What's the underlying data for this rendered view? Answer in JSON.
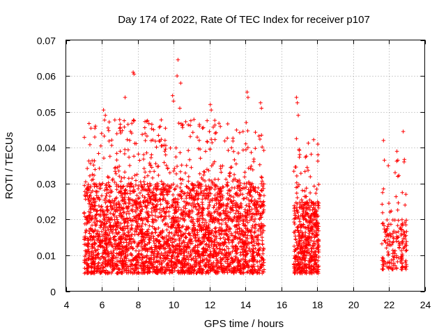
{
  "chart_data": {
    "type": "scatter",
    "title": "Day 174 of 2022, Rate Of TEC Index for receiver p107",
    "xlabel": "GPS time / hours",
    "ylabel": "ROTI / TECUs",
    "xlim": [
      4,
      24
    ],
    "ylim": [
      0,
      0.07
    ],
    "x_ticks": [
      4,
      6,
      8,
      10,
      12,
      14,
      16,
      18,
      20,
      22,
      24
    ],
    "x_tick_labels": [
      "4",
      "6",
      "8",
      "10",
      "12",
      "14",
      "16",
      "18",
      "20",
      "22",
      "24"
    ],
    "y_ticks": [
      0,
      0.01,
      0.02,
      0.03,
      0.04,
      0.05,
      0.06,
      0.07
    ],
    "y_tick_labels": [
      "0",
      "0.01",
      "0.02",
      "0.03",
      "0.04",
      "0.05",
      "0.06",
      "0.07"
    ],
    "grid": true,
    "marker": "+",
    "color": "#ff0000",
    "series": [
      {
        "name": "ROTI",
        "clusters": [
          {
            "x_range": [
              5.0,
              15.05
            ],
            "count": 3400,
            "typical_y": [
              0.005,
              0.03
            ]
          },
          {
            "x_range": [
              16.7,
              18.1
            ],
            "count": 520,
            "typical_y": [
              0.005,
              0.025
            ]
          },
          {
            "x_range": [
              21.6,
              23.0
            ],
            "count": 170,
            "typical_y": [
              0.006,
              0.02
            ]
          }
        ],
        "highlight_points": [
          {
            "x": 10.25,
            "y": 0.0645
          },
          {
            "x": 7.75,
            "y": 0.061
          },
          {
            "x": 7.8,
            "y": 0.0605
          },
          {
            "x": 10.2,
            "y": 0.06
          },
          {
            "x": 10.4,
            "y": 0.058
          },
          {
            "x": 7.3,
            "y": 0.054
          },
          {
            "x": 9.95,
            "y": 0.0545
          },
          {
            "x": 10.0,
            "y": 0.053
          },
          {
            "x": 14.1,
            "y": 0.0555
          },
          {
            "x": 14.15,
            "y": 0.054
          },
          {
            "x": 14.85,
            "y": 0.0525
          },
          {
            "x": 14.9,
            "y": 0.051
          },
          {
            "x": 12.05,
            "y": 0.052
          },
          {
            "x": 12.1,
            "y": 0.0505
          },
          {
            "x": 10.35,
            "y": 0.051
          },
          {
            "x": 6.1,
            "y": 0.0505
          },
          {
            "x": 6.2,
            "y": 0.049
          },
          {
            "x": 5.65,
            "y": 0.046
          },
          {
            "x": 7.25,
            "y": 0.0475
          },
          {
            "x": 14.05,
            "y": 0.047
          },
          {
            "x": 14.9,
            "y": 0.0435
          },
          {
            "x": 12.0,
            "y": 0.0445
          },
          {
            "x": 16.85,
            "y": 0.054
          },
          {
            "x": 16.9,
            "y": 0.0525
          },
          {
            "x": 16.95,
            "y": 0.049
          },
          {
            "x": 16.85,
            "y": 0.0425
          },
          {
            "x": 17.0,
            "y": 0.0395
          },
          {
            "x": 18.05,
            "y": 0.038
          },
          {
            "x": 17.45,
            "y": 0.0345
          },
          {
            "x": 21.7,
            "y": 0.042
          },
          {
            "x": 21.75,
            "y": 0.0365
          },
          {
            "x": 22.8,
            "y": 0.0445
          },
          {
            "x": 22.45,
            "y": 0.039
          },
          {
            "x": 22.5,
            "y": 0.0365
          },
          {
            "x": 22.85,
            "y": 0.036
          },
          {
            "x": 22.5,
            "y": 0.032
          },
          {
            "x": 22.75,
            "y": 0.0275
          },
          {
            "x": 22.95,
            "y": 0.027
          },
          {
            "x": 21.7,
            "y": 0.0285
          },
          {
            "x": 21.65,
            "y": 0.0275
          },
          {
            "x": 22.0,
            "y": 0.0245
          },
          {
            "x": 22.9,
            "y": 0.024
          },
          {
            "x": 22.95,
            "y": 0.0185
          },
          {
            "x": 22.7,
            "y": 0.016
          },
          {
            "x": 22.95,
            "y": 0.0155
          },
          {
            "x": 22.95,
            "y": 0.0085
          },
          {
            "x": 22.35,
            "y": 0.0065
          }
        ]
      }
    ]
  }
}
